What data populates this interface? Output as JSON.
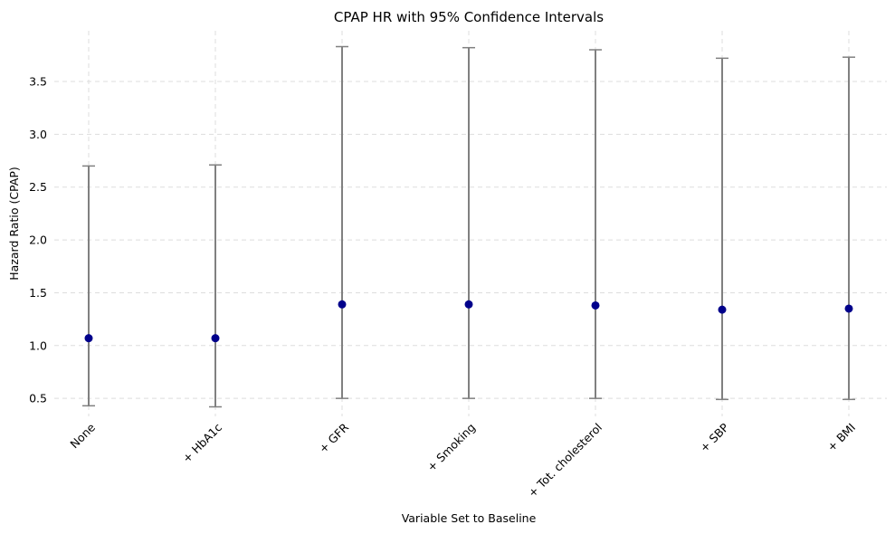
{
  "chart_data": {
    "type": "scatter",
    "title": "CPAP HR with 95% Confidence Intervals",
    "xlabel": "Variable Set to Baseline",
    "ylabel": "Hazard Ratio (CPAP)",
    "categories": [
      "None",
      "+ HbA1c",
      "+ GFR",
      "+ Smoking",
      "+ Tot. cholesterol",
      "+ SBP",
      "+ BMI"
    ],
    "series": [
      {
        "values": [
          1.07,
          1.07,
          1.39,
          1.39,
          1.38,
          1.34,
          1.35
        ],
        "ci_lower": [
          0.43,
          0.42,
          0.5,
          0.5,
          0.5,
          0.49,
          0.49
        ],
        "ci_upper": [
          2.7,
          2.71,
          3.83,
          3.82,
          3.8,
          3.72,
          3.73
        ]
      }
    ],
    "yticks": [
      "0.5",
      "1.0",
      "1.5",
      "2.0",
      "2.5",
      "3.0",
      "3.5"
    ],
    "ylim": [
      0.33,
      3.98
    ],
    "grid": true,
    "colors": {
      "point": "#00008b",
      "errorbar": "#808080",
      "grid": "#dddddd"
    }
  }
}
